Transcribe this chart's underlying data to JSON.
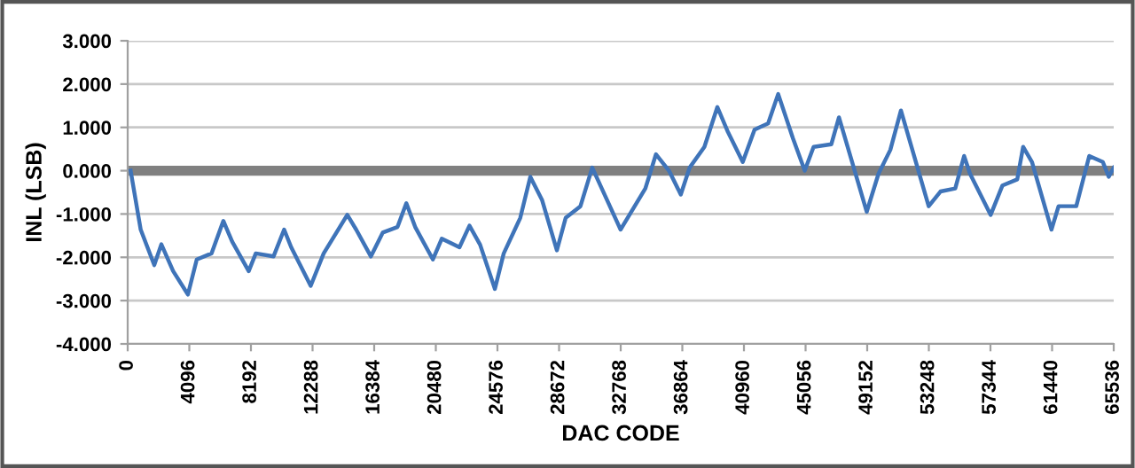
{
  "chart_data": {
    "type": "line",
    "xlabel": "DAC CODE",
    "ylabel": "INL (LSB)",
    "xlim": [
      0,
      65536
    ],
    "xticks": [
      0,
      4096,
      8192,
      12288,
      16384,
      20480,
      24576,
      28672,
      32768,
      36864,
      40960,
      45056,
      49152,
      53248,
      57344,
      61440,
      65536
    ],
    "ylim": [
      -4,
      3
    ],
    "yticks": [
      {
        "value": -4,
        "label": "-4.000"
      },
      {
        "value": -3,
        "label": "-3.000"
      },
      {
        "value": -2,
        "label": "-2.000"
      },
      {
        "value": -1,
        "label": "-1.000"
      },
      {
        "value": 0,
        "label": "0.000"
      },
      {
        "value": 1,
        "label": "1.000"
      },
      {
        "value": 2,
        "label": "2.000"
      },
      {
        "value": 3,
        "label": "3.000"
      }
    ],
    "grid": "y",
    "legend": false,
    "ref_lines": [
      {
        "axis": "y",
        "value": 0,
        "color": "#808080"
      }
    ],
    "series": [
      {
        "color": "#3f74b9",
        "x": [
          196,
          864,
          1766,
          2237,
          3022,
          4003,
          4591,
          5572,
          6357,
          6946,
          8044,
          8515,
          9692,
          10398,
          10869,
          12164,
          13027,
          14596,
          15185,
          16166,
          16951,
          17932,
          18520,
          19109,
          20286,
          20874,
          22051,
          22718,
          23425,
          24406,
          24994,
          26093,
          26760,
          27545,
          28526,
          29111,
          30092,
          30876,
          32759,
          34407,
          35113,
          35976,
          36761,
          37349,
          38330,
          39193,
          39899,
          40880,
          41665,
          42567,
          43234,
          44215,
          45000,
          45588,
          46765,
          47275,
          49119,
          49903,
          50688,
          51394,
          53238,
          54023,
          55004,
          55592,
          55985,
          57358,
          58143,
          59124,
          59516,
          60105,
          61399,
          61870,
          63047,
          63910,
          64813,
          65205,
          65536
        ],
        "values": [
          0,
          -1.36,
          -2.18,
          -1.7,
          -2.32,
          -2.86,
          -2.05,
          -1.91,
          -1.16,
          -1.64,
          -2.32,
          -1.91,
          -1.98,
          -1.36,
          -1.77,
          -2.66,
          -1.91,
          -1.02,
          -1.36,
          -1.98,
          -1.43,
          -1.3,
          -0.75,
          -1.3,
          -2.05,
          -1.57,
          -1.77,
          -1.27,
          -1.71,
          -2.73,
          -1.91,
          -1.09,
          -0.14,
          -0.68,
          -1.84,
          -1.09,
          -0.82,
          0.07,
          -1.36,
          -0.41,
          0.38,
          0,
          -0.55,
          0.07,
          0.55,
          1.47,
          0.89,
          0.2,
          0.95,
          1.09,
          1.77,
          0.75,
          0,
          0.55,
          0.61,
          1.23,
          -0.95,
          -0.07,
          0.48,
          1.39,
          -0.82,
          -0.48,
          -0.41,
          0.34,
          -0.07,
          -1.02,
          -0.34,
          -0.2,
          0.55,
          0.2,
          -1.36,
          -0.82,
          -0.82,
          0.34,
          0.2,
          -0.14,
          0.07
        ]
      }
    ]
  }
}
